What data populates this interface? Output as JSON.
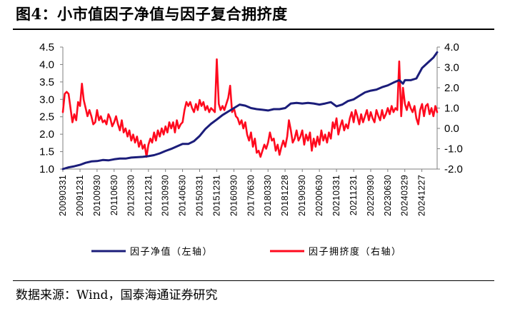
{
  "title": "图4：小市值因子净值与因子复合拥挤度",
  "source": "数据来源：Wind，国泰海通证券研究",
  "chart_data": {
    "type": "line",
    "title": "图4：小市值因子净值与因子复合拥挤度",
    "xlabel": "",
    "ylabel": "",
    "x_range": [
      "2009-03-31",
      "2025-08-29"
    ],
    "x_ticks": [
      "20090331",
      "20091231",
      "20100930",
      "20110630",
      "20120330",
      "20121231",
      "20130930",
      "20140630",
      "20150331",
      "20151231",
      "20160930",
      "20170630",
      "20180330",
      "20181228",
      "20190930",
      "20200630",
      "20210331",
      "20211231",
      "20220930",
      "20230630",
      "20240329",
      "20241227"
    ],
    "y_left": {
      "lim": [
        1.0,
        4.5
      ],
      "ticks": [
        "1.0",
        "1.5",
        "2.0",
        "2.5",
        "3.0",
        "3.5",
        "4.0",
        "4.5"
      ]
    },
    "y_right": {
      "lim": [
        -2.0,
        4.0
      ],
      "ticks": [
        "-2.0",
        "-1.0",
        "0.0",
        "1.0",
        "2.0",
        "3.0",
        "4.0"
      ]
    },
    "grid": false,
    "legend": "bottom",
    "series": [
      {
        "name": "因子净值（左轴）",
        "axis": "left",
        "color": "#1b1d7a",
        "points": [
          [
            "2009-03-31",
            1.0
          ],
          [
            "2009-06-30",
            1.05
          ],
          [
            "2009-09-30",
            1.08
          ],
          [
            "2009-12-31",
            1.12
          ],
          [
            "2010-03-31",
            1.18
          ],
          [
            "2010-06-30",
            1.22
          ],
          [
            "2010-09-30",
            1.23
          ],
          [
            "2010-12-31",
            1.26
          ],
          [
            "2011-03-31",
            1.25
          ],
          [
            "2011-06-30",
            1.28
          ],
          [
            "2011-09-30",
            1.3
          ],
          [
            "2011-12-31",
            1.3
          ],
          [
            "2012-03-31",
            1.33
          ],
          [
            "2012-06-30",
            1.34
          ],
          [
            "2012-09-30",
            1.35
          ],
          [
            "2012-12-31",
            1.37
          ],
          [
            "2013-03-31",
            1.4
          ],
          [
            "2013-06-30",
            1.45
          ],
          [
            "2013-09-30",
            1.52
          ],
          [
            "2013-12-31",
            1.58
          ],
          [
            "2014-03-31",
            1.65
          ],
          [
            "2014-06-30",
            1.72
          ],
          [
            "2014-09-30",
            1.72
          ],
          [
            "2014-12-31",
            1.8
          ],
          [
            "2015-03-31",
            1.95
          ],
          [
            "2015-06-30",
            2.15
          ],
          [
            "2015-09-30",
            2.3
          ],
          [
            "2015-12-31",
            2.42
          ],
          [
            "2016-03-31",
            2.55
          ],
          [
            "2016-06-30",
            2.65
          ],
          [
            "2016-09-30",
            2.75
          ],
          [
            "2016-12-31",
            2.85
          ],
          [
            "2017-03-31",
            2.82
          ],
          [
            "2017-06-30",
            2.75
          ],
          [
            "2017-09-30",
            2.72
          ],
          [
            "2017-12-31",
            2.7
          ],
          [
            "2018-03-31",
            2.68
          ],
          [
            "2018-06-30",
            2.72
          ],
          [
            "2018-09-30",
            2.72
          ],
          [
            "2018-12-31",
            2.75
          ],
          [
            "2019-03-31",
            2.88
          ],
          [
            "2019-06-30",
            2.9
          ],
          [
            "2019-09-30",
            2.88
          ],
          [
            "2019-12-31",
            2.9
          ],
          [
            "2020-03-31",
            2.88
          ],
          [
            "2020-06-30",
            2.85
          ],
          [
            "2020-09-30",
            2.88
          ],
          [
            "2020-12-31",
            2.92
          ],
          [
            "2021-03-31",
            2.8
          ],
          [
            "2021-06-30",
            2.85
          ],
          [
            "2021-09-30",
            2.95
          ],
          [
            "2021-12-31",
            3.0
          ],
          [
            "2022-03-31",
            3.1
          ],
          [
            "2022-06-30",
            3.2
          ],
          [
            "2022-09-30",
            3.25
          ],
          [
            "2022-12-31",
            3.28
          ],
          [
            "2023-03-31",
            3.35
          ],
          [
            "2023-06-30",
            3.4
          ],
          [
            "2023-09-30",
            3.48
          ],
          [
            "2023-12-31",
            3.55
          ],
          [
            "2024-01-31",
            3.5
          ],
          [
            "2024-02-29",
            3.45
          ],
          [
            "2024-03-31",
            3.55
          ],
          [
            "2024-06-30",
            3.55
          ],
          [
            "2024-09-30",
            3.6
          ],
          [
            "2024-12-31",
            3.9
          ],
          [
            "2025-03-31",
            4.05
          ],
          [
            "2025-06-30",
            4.2
          ],
          [
            "2025-08-29",
            4.35
          ]
        ]
      },
      {
        "name": "因子拥挤度（右轴）",
        "axis": "right",
        "color": "#ff0a1e",
        "points": [
          [
            "2009-03-31",
            0.8
          ],
          [
            "2009-04-30",
            1.7
          ],
          [
            "2009-05-31",
            1.8
          ],
          [
            "2009-06-30",
            1.7
          ],
          [
            "2009-07-31",
            1.0
          ],
          [
            "2009-08-31",
            0.3
          ],
          [
            "2009-09-30",
            0.7
          ],
          [
            "2009-10-31",
            0.4
          ],
          [
            "2009-11-30",
            1.3
          ],
          [
            "2009-12-31",
            1.1
          ],
          [
            "2010-01-31",
            2.2
          ],
          [
            "2010-02-28",
            1.4
          ],
          [
            "2010-03-31",
            1.0
          ],
          [
            "2010-04-30",
            0.6
          ],
          [
            "2010-05-31",
            0.9
          ],
          [
            "2010-06-30",
            0.6
          ],
          [
            "2010-07-31",
            0.2
          ],
          [
            "2010-08-31",
            0.3
          ],
          [
            "2010-09-30",
            0.9
          ],
          [
            "2010-10-31",
            0.4
          ],
          [
            "2010-11-30",
            0.6
          ],
          [
            "2010-12-31",
            0.3
          ],
          [
            "2011-01-31",
            0.4
          ],
          [
            "2011-02-28",
            0.2
          ],
          [
            "2011-03-31",
            0.7
          ],
          [
            "2011-04-30",
            0.5
          ],
          [
            "2011-05-31",
            0.1
          ],
          [
            "2011-06-30",
            0.3
          ],
          [
            "2011-07-31",
            0.6
          ],
          [
            "2011-08-31",
            0.2
          ],
          [
            "2011-09-30",
            -0.1
          ],
          [
            "2011-10-31",
            0.4
          ],
          [
            "2011-11-30",
            -0.2
          ],
          [
            "2011-12-31",
            0.0
          ],
          [
            "2012-01-31",
            -0.4
          ],
          [
            "2012-02-29",
            -0.1
          ],
          [
            "2012-03-31",
            -0.6
          ],
          [
            "2012-04-30",
            -0.3
          ],
          [
            "2012-05-31",
            -0.7
          ],
          [
            "2012-06-30",
            -0.4
          ],
          [
            "2012-07-31",
            -0.9
          ],
          [
            "2012-08-31",
            -0.6
          ],
          [
            "2012-09-30",
            -1.0
          ],
          [
            "2012-10-31",
            -0.8
          ],
          [
            "2012-11-30",
            -1.4
          ],
          [
            "2012-12-31",
            -0.8
          ],
          [
            "2013-01-31",
            -0.5
          ],
          [
            "2013-02-28",
            -0.7
          ],
          [
            "2013-03-31",
            -0.2
          ],
          [
            "2013-04-30",
            -0.6
          ],
          [
            "2013-05-31",
            -0.1
          ],
          [
            "2013-06-30",
            -0.4
          ],
          [
            "2013-07-31",
            0.0
          ],
          [
            "2013-08-31",
            -0.3
          ],
          [
            "2013-09-30",
            0.1
          ],
          [
            "2013-10-31",
            -0.2
          ],
          [
            "2013-11-30",
            0.3
          ],
          [
            "2013-12-31",
            0.0
          ],
          [
            "2014-01-31",
            0.3
          ],
          [
            "2014-02-28",
            -0.2
          ],
          [
            "2014-03-31",
            0.4
          ],
          [
            "2014-04-30",
            0.0
          ],
          [
            "2014-05-31",
            0.2
          ],
          [
            "2014-06-30",
            0.3
          ],
          [
            "2014-07-31",
            0.9
          ],
          [
            "2014-08-31",
            1.3
          ],
          [
            "2014-09-30",
            1.1
          ],
          [
            "2014-10-31",
            1.3
          ],
          [
            "2014-11-30",
            1.0
          ],
          [
            "2014-12-31",
            0.8
          ],
          [
            "2015-01-31",
            1.2
          ],
          [
            "2015-02-28",
            0.9
          ],
          [
            "2015-03-31",
            1.4
          ],
          [
            "2015-04-30",
            1.1
          ],
          [
            "2015-05-31",
            1.3
          ],
          [
            "2015-06-30",
            0.9
          ],
          [
            "2015-07-31",
            1.1
          ],
          [
            "2015-08-31",
            0.8
          ],
          [
            "2015-09-30",
            1.0
          ],
          [
            "2015-10-31",
            0.9
          ],
          [
            "2015-11-30",
            0.8
          ],
          [
            "2015-12-31",
            3.4
          ],
          [
            "2016-01-31",
            1.2
          ],
          [
            "2016-02-29",
            0.9
          ],
          [
            "2016-03-31",
            1.1
          ],
          [
            "2016-04-30",
            0.9
          ],
          [
            "2016-05-31",
            1.2
          ],
          [
            "2016-06-30",
            1.5
          ],
          [
            "2016-07-31",
            2.1
          ],
          [
            "2016-08-31",
            0.8
          ],
          [
            "2016-09-30",
            1.0
          ],
          [
            "2016-10-31",
            0.6
          ],
          [
            "2016-11-30",
            0.5
          ],
          [
            "2016-12-31",
            0.2
          ],
          [
            "2017-01-31",
            0.4
          ],
          [
            "2017-02-28",
            0.0
          ],
          [
            "2017-03-31",
            0.3
          ],
          [
            "2017-04-30",
            -0.3
          ],
          [
            "2017-05-31",
            -0.6
          ],
          [
            "2017-06-30",
            -0.2
          ],
          [
            "2017-07-31",
            -0.9
          ],
          [
            "2017-08-31",
            -0.5
          ],
          [
            "2017-09-30",
            -1.2
          ],
          [
            "2017-10-31",
            -1.1
          ],
          [
            "2017-11-30",
            -1.4
          ],
          [
            "2017-12-31",
            -1.1
          ],
          [
            "2018-01-31",
            -0.8
          ],
          [
            "2018-02-28",
            -1.0
          ],
          [
            "2018-03-31",
            -0.7
          ],
          [
            "2018-04-30",
            -0.2
          ],
          [
            "2018-05-31",
            -0.6
          ],
          [
            "2018-06-30",
            -0.5
          ],
          [
            "2018-07-31",
            -1.1
          ],
          [
            "2018-08-31",
            -0.8
          ],
          [
            "2018-09-30",
            -1.3
          ],
          [
            "2018-10-31",
            -0.9
          ],
          [
            "2018-11-30",
            -0.6
          ],
          [
            "2018-12-31",
            -0.9
          ],
          [
            "2019-01-31",
            -0.4
          ],
          [
            "2019-02-28",
            0.4
          ],
          [
            "2019-03-31",
            -0.1
          ],
          [
            "2019-04-30",
            -0.7
          ],
          [
            "2019-05-31",
            -0.5
          ],
          [
            "2019-06-30",
            -0.1
          ],
          [
            "2019-07-31",
            -0.6
          ],
          [
            "2019-08-31",
            -0.4
          ],
          [
            "2019-09-30",
            -0.1
          ],
          [
            "2019-10-31",
            -0.8
          ],
          [
            "2019-11-30",
            -0.3
          ],
          [
            "2019-12-31",
            -0.6
          ],
          [
            "2020-01-31",
            -0.2
          ],
          [
            "2020-02-29",
            -1.1
          ],
          [
            "2020-03-31",
            -0.5
          ],
          [
            "2020-04-30",
            -0.9
          ],
          [
            "2020-05-31",
            -0.4
          ],
          [
            "2020-06-30",
            -0.8
          ],
          [
            "2020-07-31",
            -0.1
          ],
          [
            "2020-08-31",
            -0.6
          ],
          [
            "2020-09-30",
            -0.3
          ],
          [
            "2020-10-31",
            -0.7
          ],
          [
            "2020-11-30",
            -0.2
          ],
          [
            "2020-12-31",
            -0.5
          ],
          [
            "2021-01-31",
            0.3
          ],
          [
            "2021-02-28",
            0.0
          ],
          [
            "2021-03-31",
            0.5
          ],
          [
            "2021-04-30",
            -0.3
          ],
          [
            "2021-05-31",
            0.1
          ],
          [
            "2021-06-30",
            0.4
          ],
          [
            "2021-07-31",
            -0.1
          ],
          [
            "2021-08-31",
            0.2
          ],
          [
            "2021-09-30",
            0.0
          ],
          [
            "2021-10-31",
            0.5
          ],
          [
            "2021-11-30",
            0.8
          ],
          [
            "2021-12-31",
            0.3
          ],
          [
            "2022-01-31",
            0.9
          ],
          [
            "2022-02-28",
            0.6
          ],
          [
            "2022-03-31",
            0.2
          ],
          [
            "2022-04-30",
            0.7
          ],
          [
            "2022-05-31",
            0.3
          ],
          [
            "2022-06-30",
            0.6
          ],
          [
            "2022-07-31",
            0.9
          ],
          [
            "2022-08-31",
            0.4
          ],
          [
            "2022-09-30",
            0.8
          ],
          [
            "2022-10-31",
            0.5
          ],
          [
            "2022-11-30",
            0.3
          ],
          [
            "2022-12-31",
            0.9
          ],
          [
            "2023-01-31",
            0.6
          ],
          [
            "2023-02-28",
            0.4
          ],
          [
            "2023-03-31",
            0.9
          ],
          [
            "2023-04-30",
            0.5
          ],
          [
            "2023-05-31",
            0.7
          ],
          [
            "2023-06-30",
            1.0
          ],
          [
            "2023-07-31",
            0.7
          ],
          [
            "2023-08-31",
            1.1
          ],
          [
            "2023-09-30",
            0.8
          ],
          [
            "2023-10-31",
            1.0
          ],
          [
            "2023-11-30",
            0.9
          ],
          [
            "2023-12-31",
            3.3
          ],
          [
            "2024-01-31",
            0.6
          ],
          [
            "2024-02-29",
            2.0
          ],
          [
            "2024-03-31",
            1.2
          ],
          [
            "2024-04-30",
            0.9
          ],
          [
            "2024-05-31",
            1.3
          ],
          [
            "2024-06-30",
            1.0
          ],
          [
            "2024-07-31",
            0.8
          ],
          [
            "2024-08-31",
            1.1
          ],
          [
            "2024-09-30",
            0.5
          ],
          [
            "2024-10-31",
            0.2
          ],
          [
            "2024-11-30",
            0.9
          ],
          [
            "2024-12-31",
            1.2
          ],
          [
            "2025-01-31",
            0.6
          ],
          [
            "2025-02-28",
            1.1
          ],
          [
            "2025-03-31",
            1.2
          ],
          [
            "2025-04-30",
            0.7
          ],
          [
            "2025-05-31",
            1.0
          ],
          [
            "2025-06-30",
            0.6
          ],
          [
            "2025-07-31",
            1.1
          ],
          [
            "2025-08-29",
            0.8
          ]
        ]
      }
    ]
  }
}
